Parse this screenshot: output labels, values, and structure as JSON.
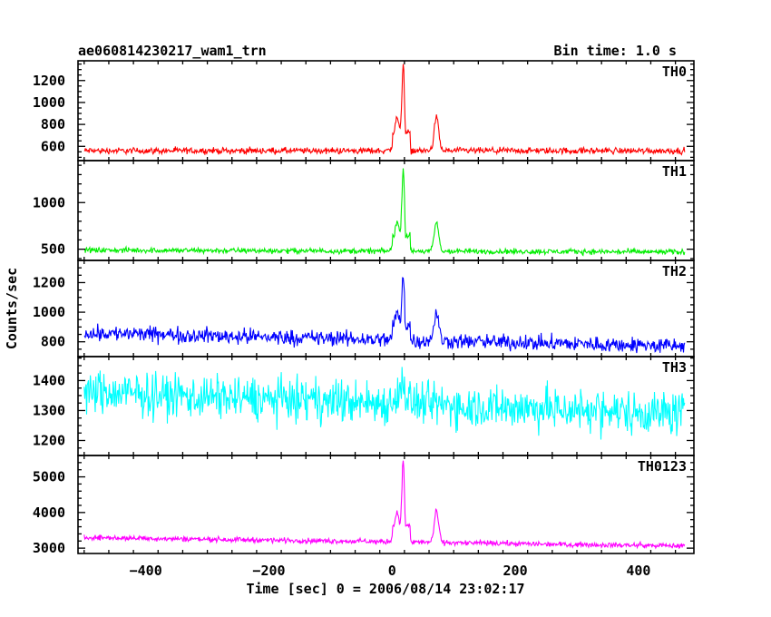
{
  "header": {
    "title": "ae060814230217_wam1_trn",
    "bin_time": "Bin time: 1.0 s"
  },
  "chart_data": {
    "type": "line",
    "xlabel": "Time [sec] 0 = 2006/08/14 23:02:17",
    "ylabel": "Counts/sec",
    "xlim": [
      -510,
      490
    ],
    "x_ticks": [
      -400,
      -200,
      0,
      200,
      400
    ],
    "x_tick_labels": [
      "−400",
      "−200",
      "0",
      "200",
      "400"
    ],
    "x_range": [
      -500,
      475
    ],
    "grid": false,
    "panels": [
      {
        "name": "TH0",
        "color": "#ff0000",
        "ylim": [
          470,
          1380
        ],
        "yticks": [
          600,
          800,
          1000,
          1200
        ],
        "profile": {
          "baseline_start": 560,
          "baseline_end": 560,
          "noise": 22,
          "pre_peak": 860,
          "peak": 1380,
          "second_peak": 870
        }
      },
      {
        "name": "TH1",
        "color": "#00ee00",
        "ylim": [
          380,
          1450
        ],
        "yticks": [
          500,
          1000
        ],
        "profile": {
          "baseline_start": 490,
          "baseline_end": 470,
          "noise": 22,
          "pre_peak": 790,
          "peak": 1420,
          "second_peak": 790
        }
      },
      {
        "name": "TH2",
        "color": "#0000ff",
        "ylim": [
          700,
          1350
        ],
        "yticks": [
          800,
          1000,
          1200
        ],
        "profile": {
          "baseline_start": 860,
          "baseline_end": 770,
          "noise": 40,
          "pre_peak": 1000,
          "peak": 1280,
          "second_peak": 1000
        }
      },
      {
        "name": "TH3",
        "color": "#00ffff",
        "ylim": [
          1150,
          1480
        ],
        "yticks": [
          1200,
          1300,
          1400
        ],
        "profile": {
          "baseline_start": 1360,
          "baseline_end": 1290,
          "noise": 55,
          "pre_peak": 1360,
          "peak": 1420,
          "second_peak": 1320
        }
      },
      {
        "name": "TH0123",
        "color": "#ff00ff",
        "ylim": [
          2850,
          5600
        ],
        "yticks": [
          3000,
          4000,
          5000
        ],
        "profile": {
          "baseline_start": 3300,
          "baseline_end": 3060,
          "noise": 55,
          "pre_peak": 4000,
          "peak": 5500,
          "second_peak": 4050
        }
      }
    ]
  }
}
